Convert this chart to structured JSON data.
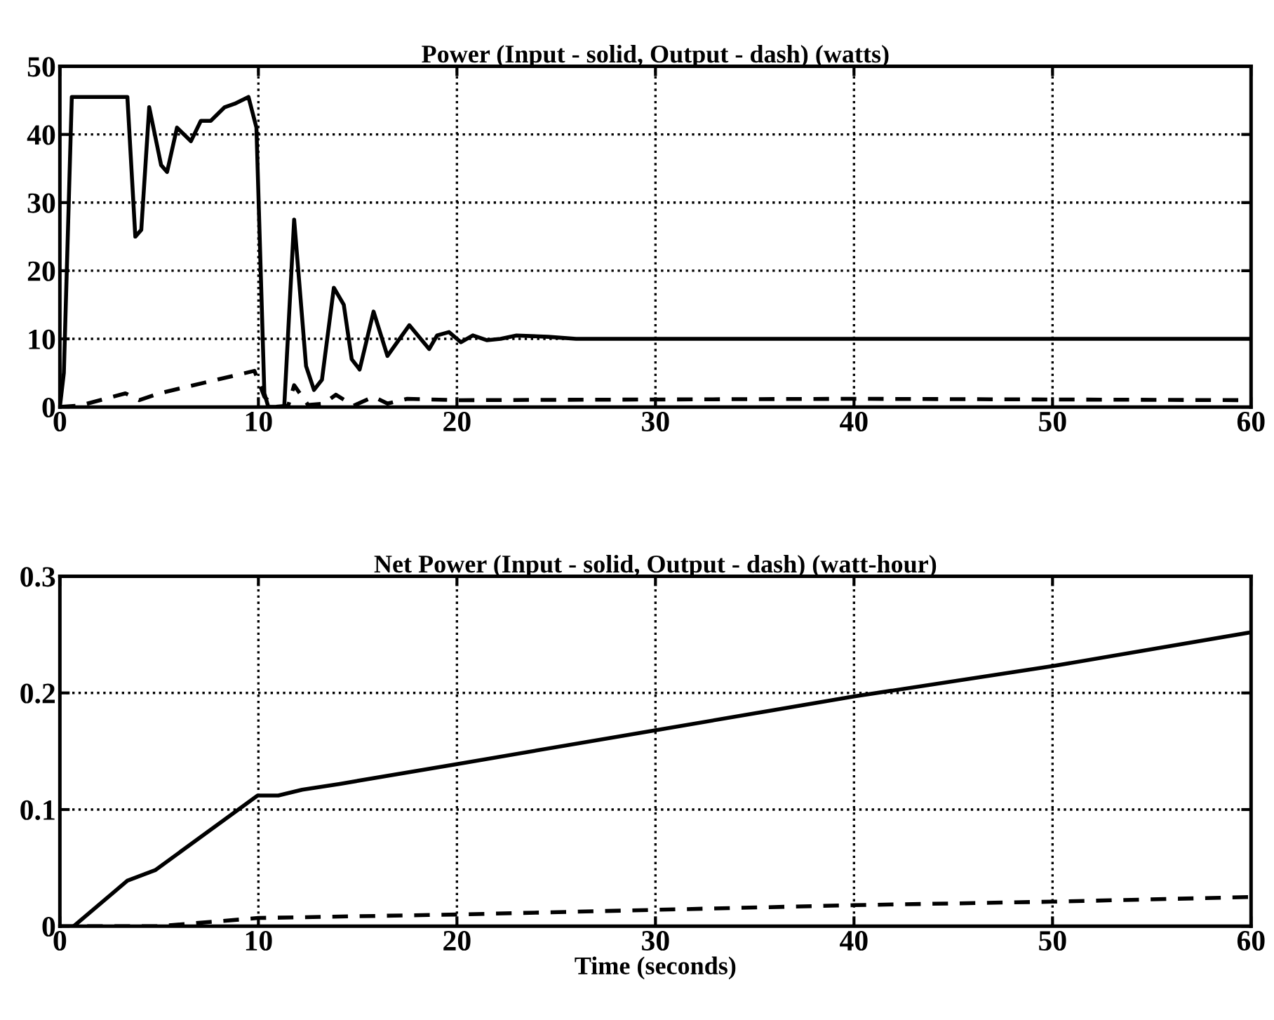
{
  "chart_data": [
    {
      "type": "line",
      "title": "Power (Input - solid, Output - dash) (watts)",
      "xlim": [
        0,
        60
      ],
      "xticks": [
        0,
        10,
        20,
        30,
        40,
        50,
        60
      ],
      "ylim": [
        0,
        50
      ],
      "yticks": [
        0,
        10,
        20,
        30,
        40,
        50
      ],
      "grid": true,
      "series": [
        {
          "color": "#000000",
          "line_style": "solid",
          "x": [
            0,
            0.2,
            0.6,
            3.4,
            3.8,
            4.1,
            4.5,
            5.1,
            5.4,
            5.9,
            6.6,
            7.1,
            7.6,
            8.3,
            8.8,
            9.5,
            9.9,
            10.3,
            10.5,
            11.3,
            11.8,
            12.4,
            12.8,
            13.2,
            13.8,
            14.3,
            14.7,
            15.1,
            15.8,
            16.5,
            17.6,
            18.6,
            19.0,
            19.6,
            20.2,
            20.8,
            21.5,
            22.2,
            23.0,
            24.6,
            26.0,
            60
          ],
          "values": [
            0,
            5,
            45.5,
            45.5,
            25,
            26,
            44,
            35.5,
            34.5,
            41,
            39,
            42,
            42,
            44,
            44.5,
            45.5,
            41,
            2,
            0,
            0,
            27.5,
            6,
            2.5,
            4,
            17.5,
            15,
            7,
            5.5,
            14,
            7.5,
            12,
            8.5,
            10.5,
            11,
            9.5,
            10.5,
            9.8,
            10,
            10.5,
            10.3,
            10,
            10
          ]
        },
        {
          "color": "#000000",
          "line_style": "dashed",
          "x": [
            0,
            1,
            3.3,
            4,
            5,
            9.8,
            10.3,
            10.8,
            11.5,
            11.8,
            12.5,
            13.3,
            13.9,
            14.8,
            15.8,
            16.5,
            17.5,
            20,
            40,
            60
          ],
          "values": [
            0,
            0.2,
            2,
            1,
            2,
            5.3,
            1.5,
            0,
            0.2,
            3.2,
            0.3,
            0.5,
            1.8,
            0.2,
            1.5,
            0.5,
            1.2,
            1,
            1.2,
            1
          ]
        }
      ]
    },
    {
      "type": "line",
      "title": "Net Power (Input - solid, Output - dash) (watt-hour)",
      "xlabel": "Time (seconds)",
      "xlim": [
        0,
        60
      ],
      "xticks": [
        0,
        10,
        20,
        30,
        40,
        50,
        60
      ],
      "ylim": [
        0,
        0.3
      ],
      "yticks": [
        0,
        0.1,
        0.2,
        0.3
      ],
      "grid": true,
      "series": [
        {
          "color": "#000000",
          "line_style": "solid",
          "x": [
            0.7,
            3.4,
            4.8,
            9.96,
            11,
            12.2,
            14.1,
            20,
            30,
            40,
            50,
            60
          ],
          "values": [
            0,
            0.039,
            0.048,
            0.112,
            0.112,
            0.117,
            0.122,
            0.139,
            0.168,
            0.197,
            0.223,
            0.252
          ]
        },
        {
          "color": "#000000",
          "line_style": "dashed",
          "x": [
            0,
            5,
            10,
            20,
            30,
            40,
            50,
            60
          ],
          "values": [
            0,
            0,
            0.007,
            0.01,
            0.014,
            0.018,
            0.021,
            0.025
          ]
        }
      ]
    }
  ]
}
